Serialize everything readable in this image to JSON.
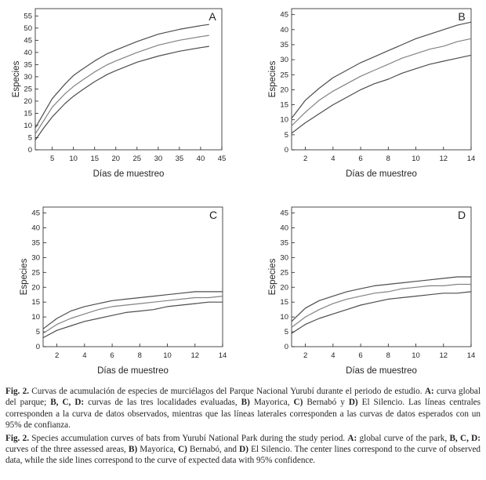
{
  "chart_data": [
    {
      "type": "line",
      "panel_letter": "A",
      "xlabel": "Días de muestreo",
      "ylabel": "Especies",
      "xlim": [
        1,
        45
      ],
      "ylim": [
        0,
        58
      ],
      "xticks": [
        5,
        10,
        15,
        20,
        25,
        30,
        35,
        40,
        45
      ],
      "yticks": [
        0,
        5,
        10,
        15,
        20,
        25,
        30,
        35,
        40,
        45,
        50,
        55
      ],
      "grid": false,
      "x": [
        1,
        3,
        5,
        8,
        10,
        12,
        15,
        18,
        20,
        25,
        30,
        35,
        40,
        42
      ],
      "series": [
        {
          "values": [
            9,
            15,
            21,
            27,
            30.5,
            33,
            36.5,
            39.5,
            41,
            44.5,
            47.5,
            49.5,
            51,
            51.5
          ]
        },
        {
          "values": [
            6.5,
            12,
            17.5,
            23,
            26,
            28.5,
            32,
            35,
            36.5,
            40,
            43,
            45,
            46.5,
            47
          ]
        },
        {
          "values": [
            4,
            9,
            13.5,
            19,
            22,
            24.5,
            28,
            31,
            32.5,
            36,
            38.5,
            40.5,
            42,
            42.5
          ]
        }
      ]
    },
    {
      "type": "line",
      "panel_letter": "B",
      "xlabel": "Días de muestreo",
      "ylabel": "Especies",
      "xlim": [
        1,
        14
      ],
      "ylim": [
        0,
        47
      ],
      "xticks": [
        2,
        4,
        6,
        8,
        10,
        12,
        14
      ],
      "yticks": [
        0,
        5,
        10,
        15,
        20,
        25,
        30,
        35,
        40,
        45
      ],
      "grid": false,
      "x": [
        1,
        2,
        3,
        4,
        5,
        6,
        7,
        8,
        9,
        10,
        11,
        12,
        13,
        14
      ],
      "series": [
        {
          "values": [
            10.5,
            16.5,
            20.5,
            24,
            26.5,
            29,
            31,
            33,
            35,
            37,
            38.5,
            40,
            41.5,
            42.5
          ]
        },
        {
          "values": [
            8,
            12.5,
            16.5,
            19.5,
            22,
            24.5,
            26.5,
            28.5,
            30.5,
            32,
            33.5,
            34.5,
            36,
            37
          ]
        },
        {
          "values": [
            5.5,
            9,
            12,
            15,
            17.5,
            20,
            22,
            23.5,
            25.5,
            27,
            28.5,
            29.5,
            30.5,
            31.5
          ]
        }
      ]
    },
    {
      "type": "line",
      "panel_letter": "C",
      "xlabel": "Días de muestreo",
      "ylabel": "Especies",
      "xlim": [
        1,
        14
      ],
      "ylim": [
        0,
        47
      ],
      "xticks": [
        2,
        4,
        6,
        8,
        10,
        12,
        14
      ],
      "yticks": [
        0,
        5,
        10,
        15,
        20,
        25,
        30,
        35,
        40,
        45
      ],
      "grid": false,
      "x": [
        1,
        2,
        3,
        4,
        5,
        6,
        7,
        8,
        9,
        10,
        11,
        12,
        13,
        14
      ],
      "series": [
        {
          "values": [
            6,
            9.5,
            12,
            13.5,
            14.5,
            15.5,
            16,
            16.5,
            17,
            17.5,
            18,
            18.5,
            18.5,
            18.5
          ]
        },
        {
          "values": [
            4.5,
            7.5,
            9.5,
            11,
            12.5,
            13.5,
            14,
            14.5,
            15,
            15.5,
            16,
            16.5,
            16.5,
            17
          ]
        },
        {
          "values": [
            3,
            5.5,
            7,
            8.5,
            9.5,
            10.5,
            11.5,
            12,
            12.5,
            13.5,
            14,
            14.5,
            15,
            15
          ]
        }
      ]
    },
    {
      "type": "line",
      "panel_letter": "D",
      "xlabel": "Días de muestreo",
      "ylabel": "Especies",
      "xlim": [
        1,
        14
      ],
      "ylim": [
        0,
        47
      ],
      "xticks": [
        2,
        4,
        6,
        8,
        10,
        12,
        14
      ],
      "yticks": [
        0,
        5,
        10,
        15,
        20,
        25,
        30,
        35,
        40,
        45
      ],
      "grid": false,
      "x": [
        1,
        2,
        3,
        4,
        5,
        6,
        7,
        8,
        9,
        10,
        11,
        12,
        13,
        14
      ],
      "series": [
        {
          "values": [
            8.5,
            13,
            15.5,
            17,
            18.5,
            19.5,
            20.5,
            21,
            21.5,
            22,
            22.5,
            23,
            23.5,
            23.5
          ]
        },
        {
          "values": [
            6.5,
            10,
            12.5,
            14.5,
            16,
            17,
            18,
            18.5,
            19.5,
            20,
            20.5,
            20.5,
            21,
            21
          ]
        },
        {
          "values": [
            4.5,
            7.5,
            9.5,
            11,
            12.5,
            14,
            15,
            16,
            16.5,
            17,
            17.5,
            18,
            18,
            18.5
          ]
        }
      ]
    }
  ],
  "caption": {
    "es": {
      "lead": "Fig. 2.",
      "parts": [
        {
          "t": " Curvas de acumulación de especies de murciélagos del Parque Nacional Yurubí durante el periodo de estudio. ",
          "b": false
        },
        {
          "t": "A:",
          "b": true
        },
        {
          "t": " curva global del parque; ",
          "b": false
        },
        {
          "t": "B, C, D:",
          "b": true
        },
        {
          "t": " curvas de las tres localidades evaluadas, ",
          "b": false
        },
        {
          "t": "B)",
          "b": true
        },
        {
          "t": " Mayorica, ",
          "b": false
        },
        {
          "t": "C)",
          "b": true
        },
        {
          "t": " Bernabó y ",
          "b": false
        },
        {
          "t": "D)",
          "b": true
        },
        {
          "t": " El Silencio. Las líneas centrales corresponden a la curva de datos observados, mientras que las líneas laterales corresponden a las curvas de datos esperados con un 95% de confianza.",
          "b": false
        }
      ]
    },
    "en": {
      "lead": "Fig. 2.",
      "parts": [
        {
          "t": " Species accumulation curves of bats from Yurubí National Park during the study period. ",
          "b": false
        },
        {
          "t": "A:",
          "b": true
        },
        {
          "t": " global curve of the park, ",
          "b": false
        },
        {
          "t": "B, C, D:",
          "b": true
        },
        {
          "t": " curves of the three assessed areas, ",
          "b": false
        },
        {
          "t": "B)",
          "b": true
        },
        {
          "t": " Mayorica, ",
          "b": false
        },
        {
          "t": "C)",
          "b": true
        },
        {
          "t": " Bernabó, and ",
          "b": false
        },
        {
          "t": "D)",
          "b": true
        },
        {
          "t": " El Silencio. The center lines correspond to the curve of observed data, while the side lines correspond to the curve of expected data with 95% confidence.",
          "b": false
        }
      ]
    }
  },
  "colors": {
    "axis": "#231f20",
    "outer_series": "#4d4d4f",
    "center_series": "#808285"
  }
}
